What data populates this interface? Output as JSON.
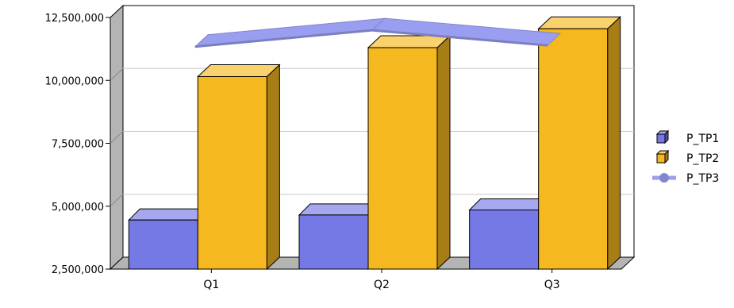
{
  "chart_data": {
    "type": "bar",
    "categories": [
      "Q1",
      "Q2",
      "Q3"
    ],
    "series": [
      {
        "name": "P_TP1",
        "type": "bar",
        "values": [
          4450000,
          4650000,
          4850000
        ]
      },
      {
        "name": "P_TP2",
        "type": "bar",
        "values": [
          10150000,
          11300000,
          12050000
        ]
      },
      {
        "name": "P_TP3",
        "type": "line",
        "values": [
          11750000,
          12400000,
          11800000
        ]
      }
    ],
    "yticks": [
      "2,500,000",
      "5,000,000",
      "7,500,000",
      "10,000,000",
      "12,500,000"
    ],
    "ylim": [
      2500000,
      12500000
    ],
    "grid": true,
    "legend_position": "right",
    "colors": {
      "P_TP1": "#7479e6",
      "P_TP2": "#f5b81f",
      "P_TP3": "#9a9ef0"
    }
  }
}
